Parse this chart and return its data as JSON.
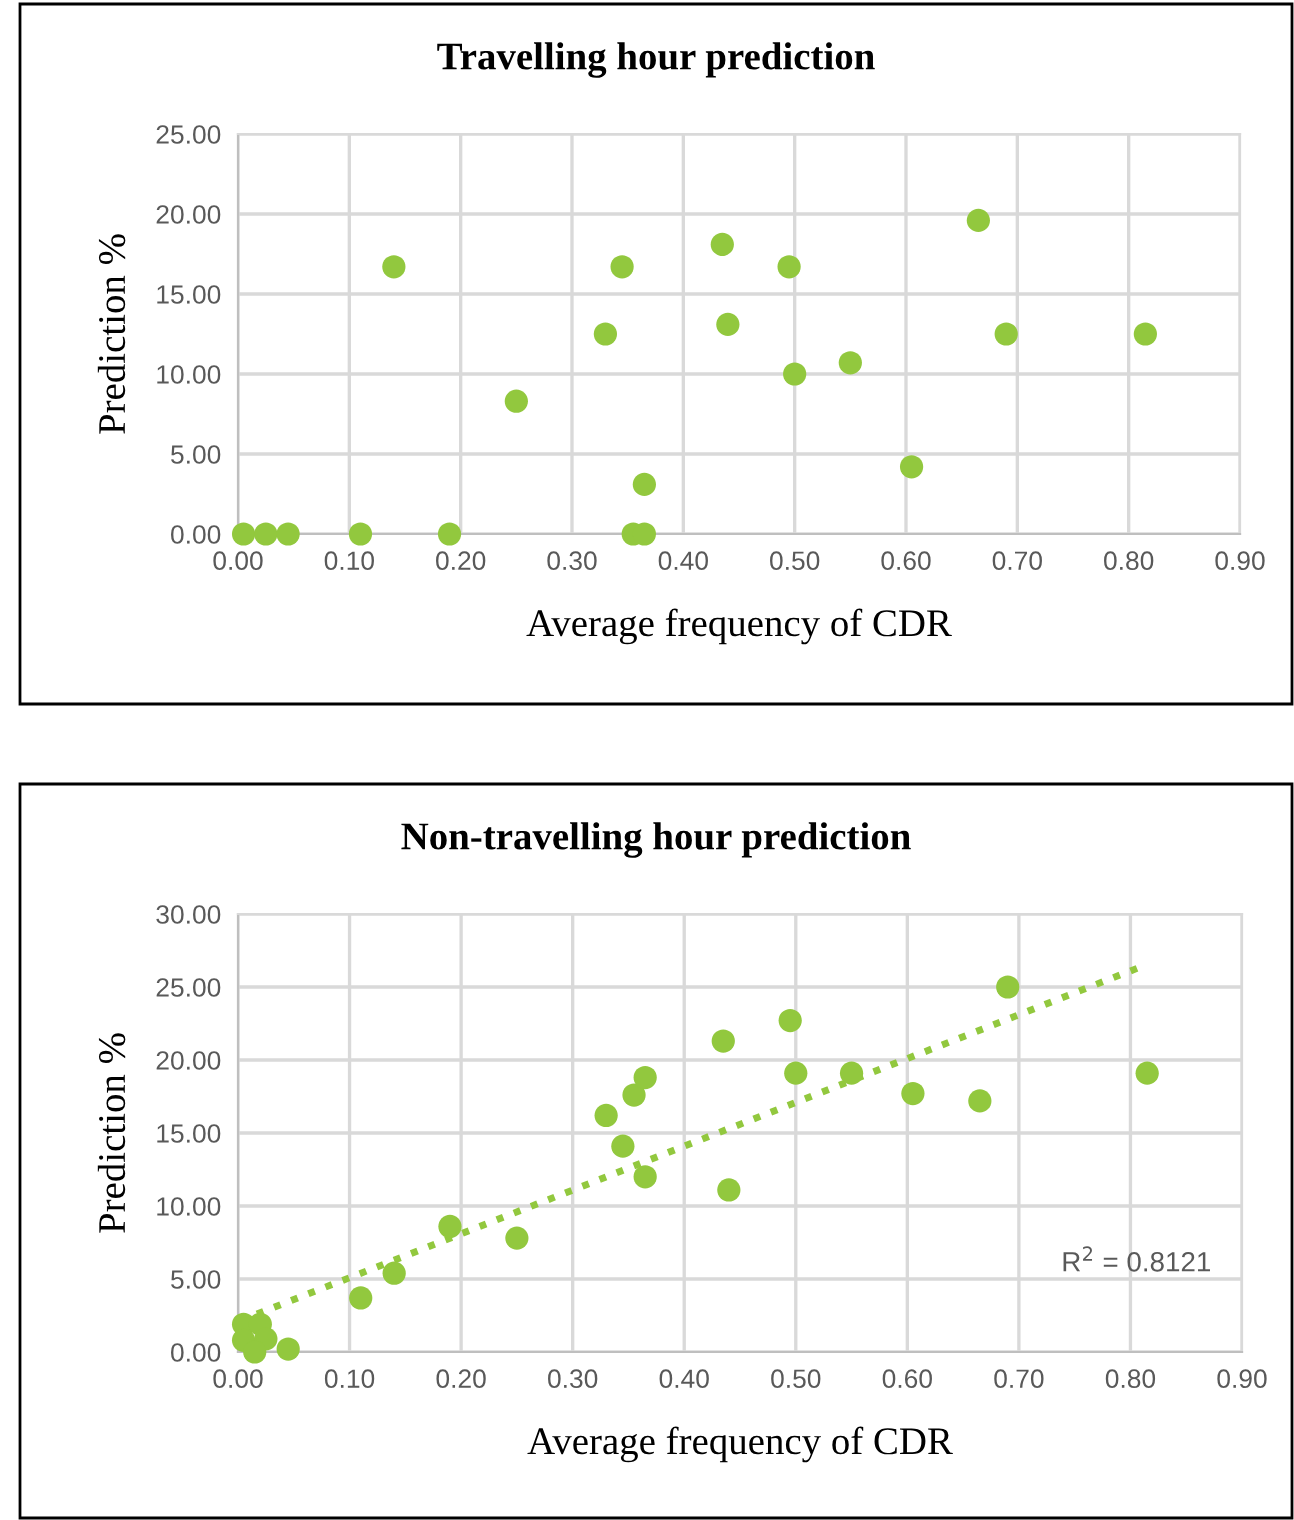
{
  "chart_data": [
    {
      "type": "scatter",
      "title": "Travelling hour prediction",
      "xlabel": "Average frequency of CDR",
      "ylabel": "Prediction %",
      "marker": "circle",
      "grid": true,
      "legend": false,
      "xlim": [
        0,
        0.9
      ],
      "ylim": [
        0,
        25
      ],
      "xticks": [
        {
          "value": 0,
          "label": "0.00"
        },
        {
          "value": 0.1,
          "label": "0.10"
        },
        {
          "value": 0.2,
          "label": "0.20"
        },
        {
          "value": 0.3,
          "label": "0.30"
        },
        {
          "value": 0.4,
          "label": "0.40"
        },
        {
          "value": 0.5,
          "label": "0.50"
        },
        {
          "value": 0.6,
          "label": "0.60"
        },
        {
          "value": 0.7,
          "label": "0.70"
        },
        {
          "value": 0.8,
          "label": "0.80"
        },
        {
          "value": 0.9,
          "label": "0.90"
        }
      ],
      "yticks": [
        {
          "value": 0,
          "label": "0.00"
        },
        {
          "value": 5,
          "label": "5.00"
        },
        {
          "value": 10,
          "label": "10.00"
        },
        {
          "value": 15,
          "label": "15.00"
        },
        {
          "value": 20,
          "label": "20.00"
        },
        {
          "value": 25,
          "label": "25.00"
        }
      ],
      "series": [
        {
          "color": "#92c83e",
          "x": [
            0.005,
            0.025,
            0.045,
            0.11,
            0.19,
            0.14,
            0.25,
            0.33,
            0.345,
            0.355,
            0.365,
            0.365,
            0.435,
            0.44,
            0.495,
            0.5,
            0.55,
            0.605,
            0.665,
            0.69,
            0.815
          ],
          "values": [
            0,
            0,
            0,
            0,
            0,
            16.7,
            8.3,
            12.5,
            16.7,
            0,
            0,
            3.1,
            18.1,
            13.1,
            16.7,
            10.0,
            10.7,
            4.2,
            19.6,
            12.5,
            12.5
          ]
        }
      ]
    },
    {
      "type": "scatter",
      "title": "Non-travelling hour prediction",
      "xlabel": "Average frequency of CDR",
      "ylabel": "Prediction %",
      "marker": "circle",
      "grid": true,
      "legend": false,
      "xlim": [
        0,
        0.9
      ],
      "ylim": [
        0,
        30
      ],
      "xticks": [
        {
          "value": 0,
          "label": "0.00"
        },
        {
          "value": 0.1,
          "label": "0.10"
        },
        {
          "value": 0.2,
          "label": "0.20"
        },
        {
          "value": 0.3,
          "label": "0.30"
        },
        {
          "value": 0.4,
          "label": "0.40"
        },
        {
          "value": 0.5,
          "label": "0.50"
        },
        {
          "value": 0.6,
          "label": "0.60"
        },
        {
          "value": 0.7,
          "label": "0.70"
        },
        {
          "value": 0.8,
          "label": "0.80"
        },
        {
          "value": 0.9,
          "label": "0.90"
        }
      ],
      "yticks": [
        {
          "value": 0,
          "label": "0.00"
        },
        {
          "value": 5,
          "label": "5.00"
        },
        {
          "value": 10,
          "label": "10.00"
        },
        {
          "value": 15,
          "label": "15.00"
        },
        {
          "value": 20,
          "label": "20.00"
        },
        {
          "value": 25,
          "label": "25.00"
        },
        {
          "value": 30,
          "label": "30.00"
        }
      ],
      "annotations": [
        "R$^{2}$ = 0.8121"
      ],
      "series": [
        {
          "color": "#92c83e",
          "x": [
            0.005,
            0.005,
            0.02,
            0.025,
            0.015,
            0.045,
            0.11,
            0.14,
            0.19,
            0.25,
            0.33,
            0.345,
            0.355,
            0.365,
            0.365,
            0.435,
            0.44,
            0.495,
            0.5,
            0.55,
            0.605,
            0.665,
            0.69,
            0.815
          ],
          "values": [
            1.9,
            0.8,
            1.9,
            0.9,
            0,
            0.2,
            3.7,
            5.4,
            8.6,
            7.8,
            16.2,
            14.1,
            17.6,
            18.8,
            12.0,
            21.3,
            11.1,
            22.7,
            19.1,
            19.1,
            17.7,
            17.2,
            25.0,
            19.1
          ]
        },
        {
          "type": "line",
          "color": "#92c83e",
          "line_style": "dotted",
          "marker": "none",
          "x": [
            0.017,
            0.81
          ],
          "values": [
            2.6,
            26.4
          ]
        }
      ]
    }
  ]
}
